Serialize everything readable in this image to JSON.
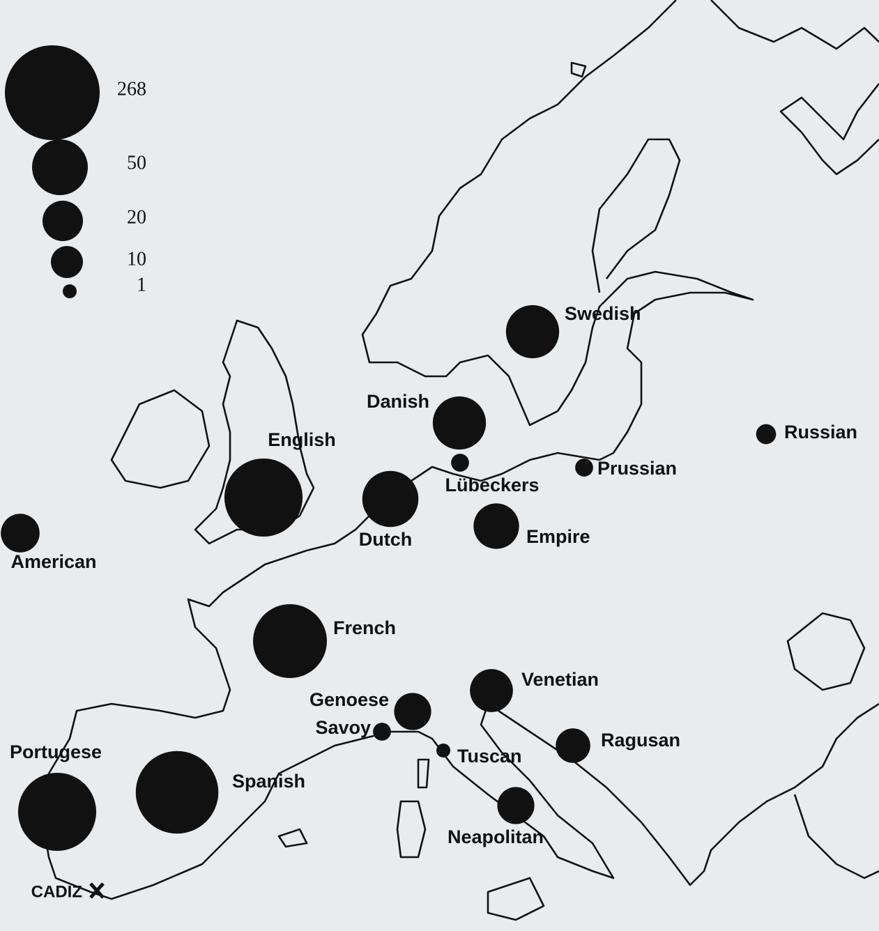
{
  "legend": {
    "values": [
      268,
      50,
      20,
      10,
      1
    ]
  },
  "fleets": [
    {
      "name": "Swedish",
      "value": 45
    },
    {
      "name": "Danish",
      "value": 45
    },
    {
      "name": "English",
      "value": 175
    },
    {
      "name": "Dutch",
      "value": 52
    },
    {
      "name": "Lübeckers",
      "value": 3
    },
    {
      "name": "Prussian",
      "value": 3
    },
    {
      "name": "Russian",
      "value": 4
    },
    {
      "name": "American",
      "value": 18
    },
    {
      "name": "Empire",
      "value": 30
    },
    {
      "name": "French",
      "value": 151
    },
    {
      "name": "Genoese",
      "value": 16
    },
    {
      "name": "Savoy",
      "value": 3
    },
    {
      "name": "Tuscan",
      "value": 1
    },
    {
      "name": "Venetian",
      "value": 25
    },
    {
      "name": "Ragusan",
      "value": 13
    },
    {
      "name": "Neapolitan",
      "value": 16
    },
    {
      "name": "Portugese",
      "value": 175
    },
    {
      "name": "Spanish",
      "value": 200
    }
  ],
  "places": [
    {
      "name": "CADIZ"
    }
  ]
}
